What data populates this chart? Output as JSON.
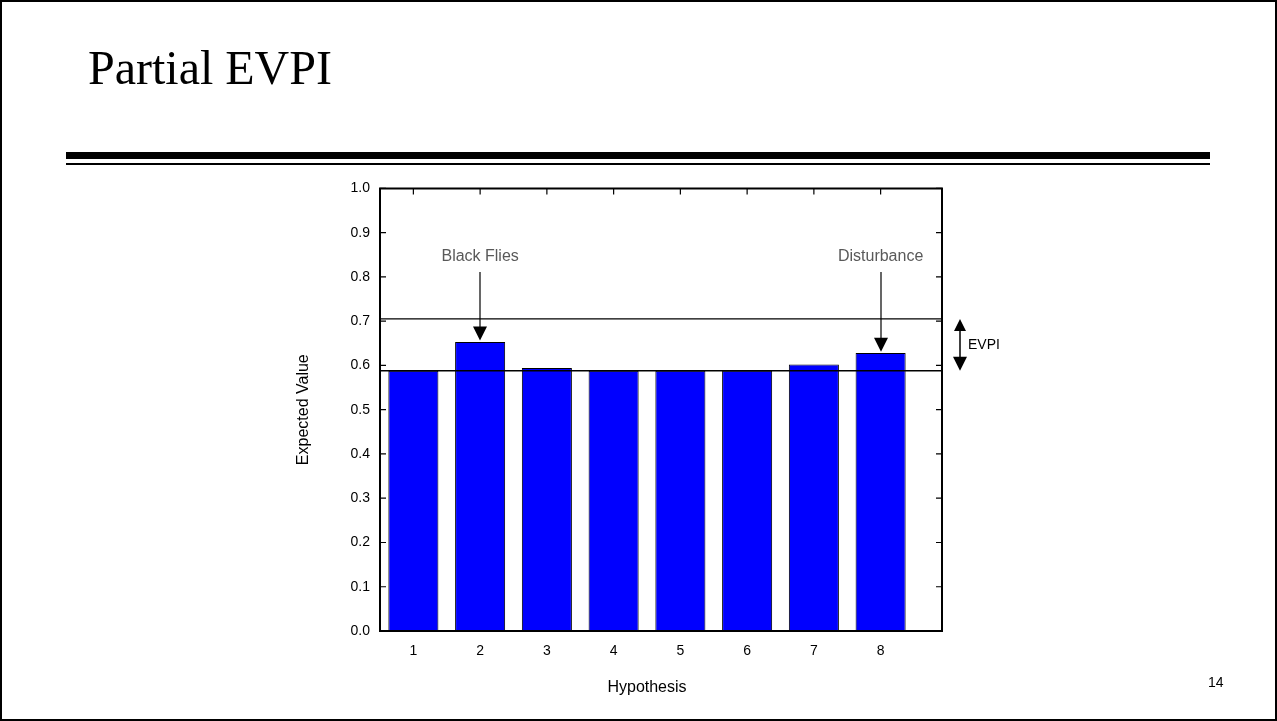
{
  "chart_data": {
    "type": "bar",
    "title": "Partial EVPI",
    "xlabel": "Hypothesis",
    "ylabel": "Expected Value",
    "categories": [
      "1",
      "2",
      "3",
      "4",
      "5",
      "6",
      "7",
      "8"
    ],
    "values": [
      0.588,
      0.653,
      0.594,
      0.588,
      0.588,
      0.588,
      0.602,
      0.628
    ],
    "color": "#0000ff",
    "ylim": [
      0,
      1
    ],
    "yticks": [
      {
        "value": 0,
        "label": "0.0"
      },
      {
        "value": 0.1,
        "label": "0.1"
      },
      {
        "value": 0.2,
        "label": "0.2"
      },
      {
        "value": 0.3,
        "label": "0.3"
      },
      {
        "value": 0.4,
        "label": "0.4"
      },
      {
        "value": 0.5,
        "label": "0.5"
      },
      {
        "value": 0.6,
        "label": "0.6"
      },
      {
        "value": 0.7,
        "label": "0.7"
      },
      {
        "value": 0.8,
        "label": "0.8"
      },
      {
        "value": 0.9,
        "label": "0.9"
      },
      {
        "value": 1,
        "label": "1.0"
      }
    ],
    "ref_lines": [
      {
        "axis": "y",
        "value": 0.705,
        "color": "#000000"
      },
      {
        "axis": "y",
        "value": 0.588,
        "color": "#000000"
      }
    ],
    "annotations": [
      {
        "text": "Black Flies",
        "x": "2"
      },
      {
        "text": "Disturbance",
        "x": "8"
      },
      "EVPI",
      "14"
    ],
    "grid": false,
    "legend": false
  }
}
